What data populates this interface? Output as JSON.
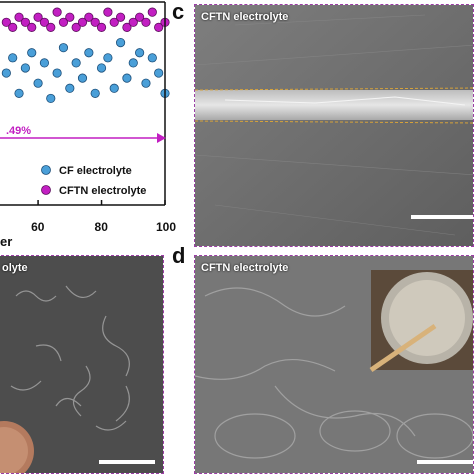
{
  "chart_data": {
    "type": "scatter",
    "x_ticks": [
      "60",
      "80",
      "100"
    ],
    "xlabel": "er",
    "annotation": ".49%",
    "legend": [
      {
        "name": "CF electrolyte",
        "color": "#4a9fd8"
      },
      {
        "name": "CFTN electrolyte",
        "color": "#c21fc2"
      }
    ],
    "series": [
      {
        "name": "CFTN electrolyte",
        "x": [
          50,
          52,
          54,
          56,
          58,
          60,
          62,
          64,
          66,
          68,
          70,
          72,
          74,
          76,
          78,
          80,
          82,
          84,
          86,
          88,
          90,
          92,
          94,
          96,
          98,
          100
        ],
        "y": [
          99.6,
          99.5,
          99.7,
          99.6,
          99.5,
          99.7,
          99.6,
          99.5,
          99.8,
          99.6,
          99.7,
          99.5,
          99.6,
          99.7,
          99.6,
          99.5,
          99.8,
          99.6,
          99.7,
          99.5,
          99.6,
          99.7,
          99.6,
          99.8,
          99.5,
          99.6
        ]
      },
      {
        "name": "CF electrolyte",
        "x": [
          50,
          52,
          54,
          56,
          58,
          60,
          62,
          64,
          66,
          68,
          70,
          72,
          74,
          76,
          78,
          80,
          82,
          84,
          86,
          88,
          90,
          92,
          94,
          96,
          98,
          100
        ],
        "y": [
          98.6,
          98.9,
          98.2,
          98.7,
          99.0,
          98.4,
          98.8,
          98.1,
          98.6,
          99.1,
          98.3,
          98.8,
          98.5,
          99.0,
          98.2,
          98.7,
          98.9,
          98.3,
          99.2,
          98.5,
          98.8,
          99.0,
          98.4,
          98.9,
          98.6,
          98.2
        ]
      }
    ],
    "xlim": [
      48,
      100
    ],
    "ylim": [
      96,
      100
    ],
    "colors": {
      "cf": "#4a9fd8",
      "cftn": "#c21fc2",
      "arrow": "#c21fc2"
    }
  },
  "panels": {
    "c": {
      "letter": "c",
      "label": "CFTN electrolyte"
    },
    "b": {
      "label": "olyte"
    },
    "d": {
      "letter": "d",
      "label": "CFTN electrolyte"
    }
  }
}
